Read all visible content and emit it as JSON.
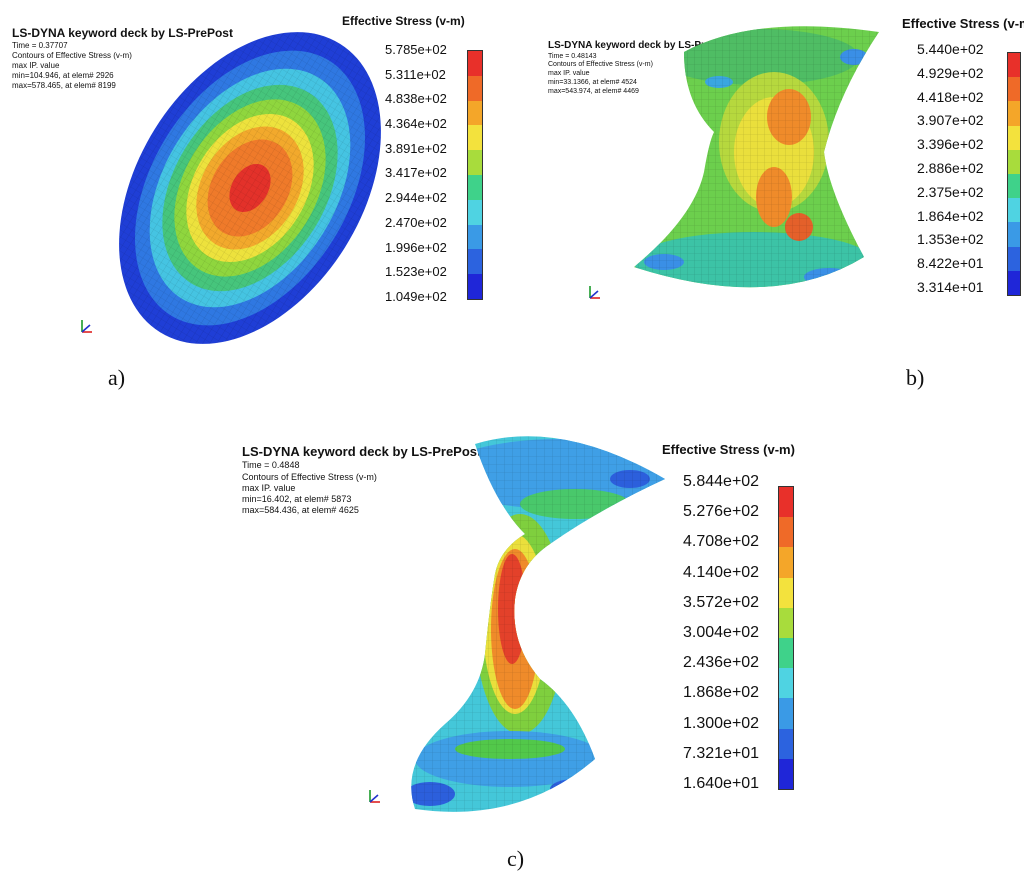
{
  "palette": [
    "#e8302a",
    "#ef6a28",
    "#f4a629",
    "#f3e23d",
    "#a8dc3c",
    "#52c84a",
    "#3fd28a",
    "#4fd3e2",
    "#3a9ae6",
    "#2c63df",
    "#1f26d8"
  ],
  "panels": [
    {
      "id": "a",
      "header": {
        "title": "LS-DYNA keyword deck by LS-PrePost",
        "time": "Time =    0.37707",
        "contours": "Contours of Effective Stress (v-m)",
        "maxip": "max IP. value",
        "min": " min=104.946, at elem# 2926",
        "max": " max=578.465, at elem# 8199"
      },
      "legend": {
        "title": "Effective Stress (v-m)",
        "labels": [
          "5.785e+02",
          "5.311e+02",
          "4.838e+02",
          "4.364e+02",
          "3.891e+02",
          "3.417e+02",
          "2.944e+02",
          "2.470e+02",
          "1.996e+02",
          "1.523e+02",
          "1.049e+02"
        ]
      },
      "caption": "a)"
    },
    {
      "id": "b",
      "header": {
        "title": "LS-DYNA keyword deck by LS-PrePost",
        "time": "Time =    0.48143",
        "contours": "Contours of Effective Stress (v-m)",
        "maxip": "max IP. value",
        "min": " min=33.1366, at elem# 4524",
        "max": " max=543.974, at elem# 4469"
      },
      "legend": {
        "title": "Effective Stress (v-m)",
        "labels": [
          "5.440e+02",
          "4.929e+02",
          "4.418e+02",
          "3.907e+02",
          "3.396e+02",
          "2.886e+02",
          "2.375e+02",
          "1.864e+02",
          "1.353e+02",
          "8.422e+01",
          "3.314e+01"
        ]
      },
      "caption": "b)"
    },
    {
      "id": "c",
      "header": {
        "title": "LS-DYNA keyword deck by LS-PrePost",
        "time": "Time =    0.4848",
        "contours": "Contours of Effective Stress (v-m)",
        "maxip": "max IP. value",
        "min": " min=16.402, at elem# 5873",
        "max": " max=584.436, at elem# 4625"
      },
      "legend": {
        "title": "Effective Stress (v-m)",
        "labels": [
          "5.844e+02",
          "5.276e+02",
          "4.708e+02",
          "4.140e+02",
          "3.572e+02",
          "3.004e+02",
          "2.436e+02",
          "1.868e+02",
          "1.300e+02",
          "7.321e+01",
          "1.640e+01"
        ]
      },
      "caption": "c)"
    }
  ]
}
